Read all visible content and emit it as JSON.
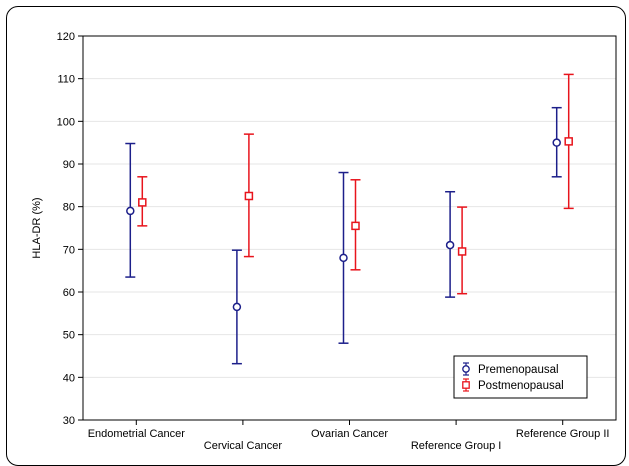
{
  "chart_data": {
    "type": "scatter",
    "ylabel": "HLA-DR (%)",
    "ylim": [
      30,
      120
    ],
    "yticks": [
      30,
      40,
      50,
      60,
      70,
      80,
      90,
      100,
      110,
      120
    ],
    "categories": [
      "Endometrial Cancer",
      "Cervical Cancer",
      "Ovarian Cancer",
      "Reference Group I",
      "Reference Group II"
    ],
    "grid": true,
    "legend_position": "bottom-right",
    "series": [
      {
        "name": "Premenopausal",
        "color": "#1c1f8a",
        "marker": "circle",
        "values": [
          79,
          56.5,
          68,
          71,
          95
        ],
        "lower": [
          63.5,
          43.2,
          48,
          58.8,
          87
        ],
        "upper": [
          94.8,
          69.8,
          88,
          83.5,
          103.2
        ]
      },
      {
        "name": "Postmenopausal",
        "color": "#e8141c",
        "marker": "square",
        "values": [
          81,
          82.5,
          75.5,
          69.5,
          95.3
        ],
        "lower": [
          75.5,
          68.3,
          65.2,
          59.6,
          79.6
        ],
        "upper": [
          87,
          97,
          86.3,
          79.9,
          111
        ]
      }
    ]
  }
}
